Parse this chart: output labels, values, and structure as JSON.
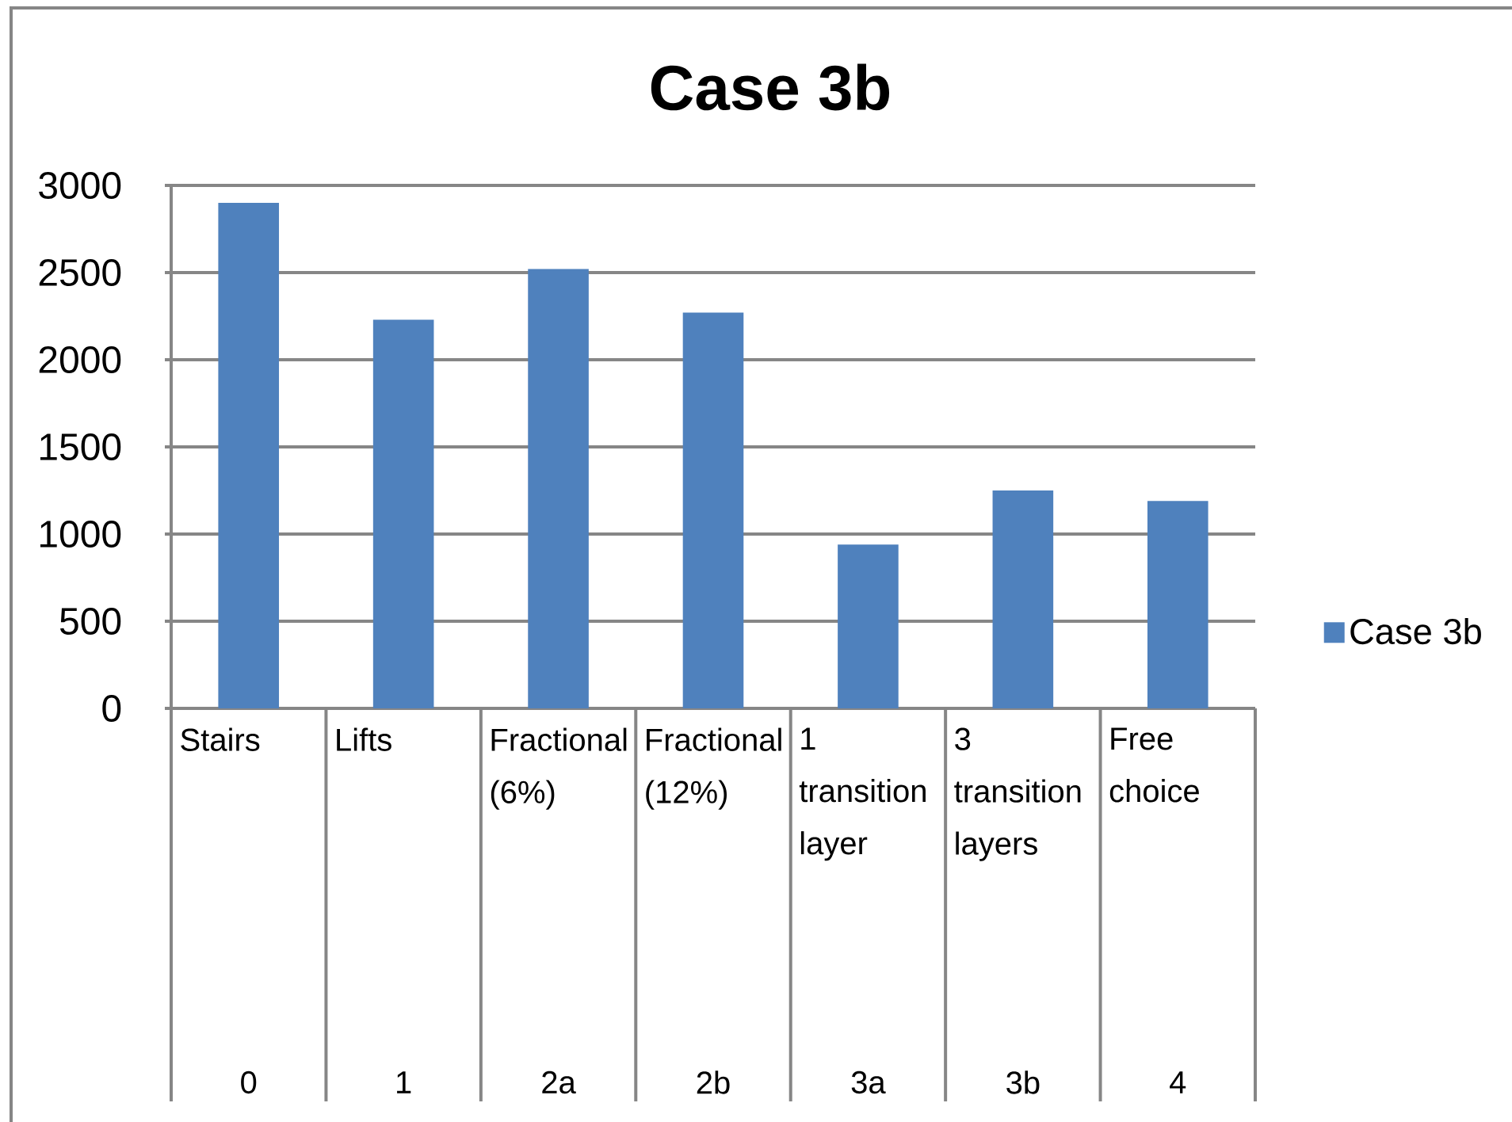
{
  "chart_data": {
    "type": "bar",
    "title": "Case 3b",
    "categories": [
      "Stairs",
      "Lifts",
      "Fractional (6%)",
      "Fractional (12%)",
      "1 transition layer",
      "3 transition layers",
      "Free choice"
    ],
    "series": [
      {
        "name": "Case 3b",
        "color": "#4f81bd",
        "values": [
          2900,
          2230,
          2520,
          2270,
          940,
          1250,
          1190
        ]
      }
    ],
    "ylim": [
      0,
      3000
    ],
    "yticks": [
      0,
      500,
      1000,
      1500,
      2000,
      2500,
      3000
    ],
    "grid": "y",
    "legend": "right",
    "annotations": [
      "0",
      "1",
      "2a",
      "2b",
      "3a",
      "3b",
      "4"
    ]
  }
}
